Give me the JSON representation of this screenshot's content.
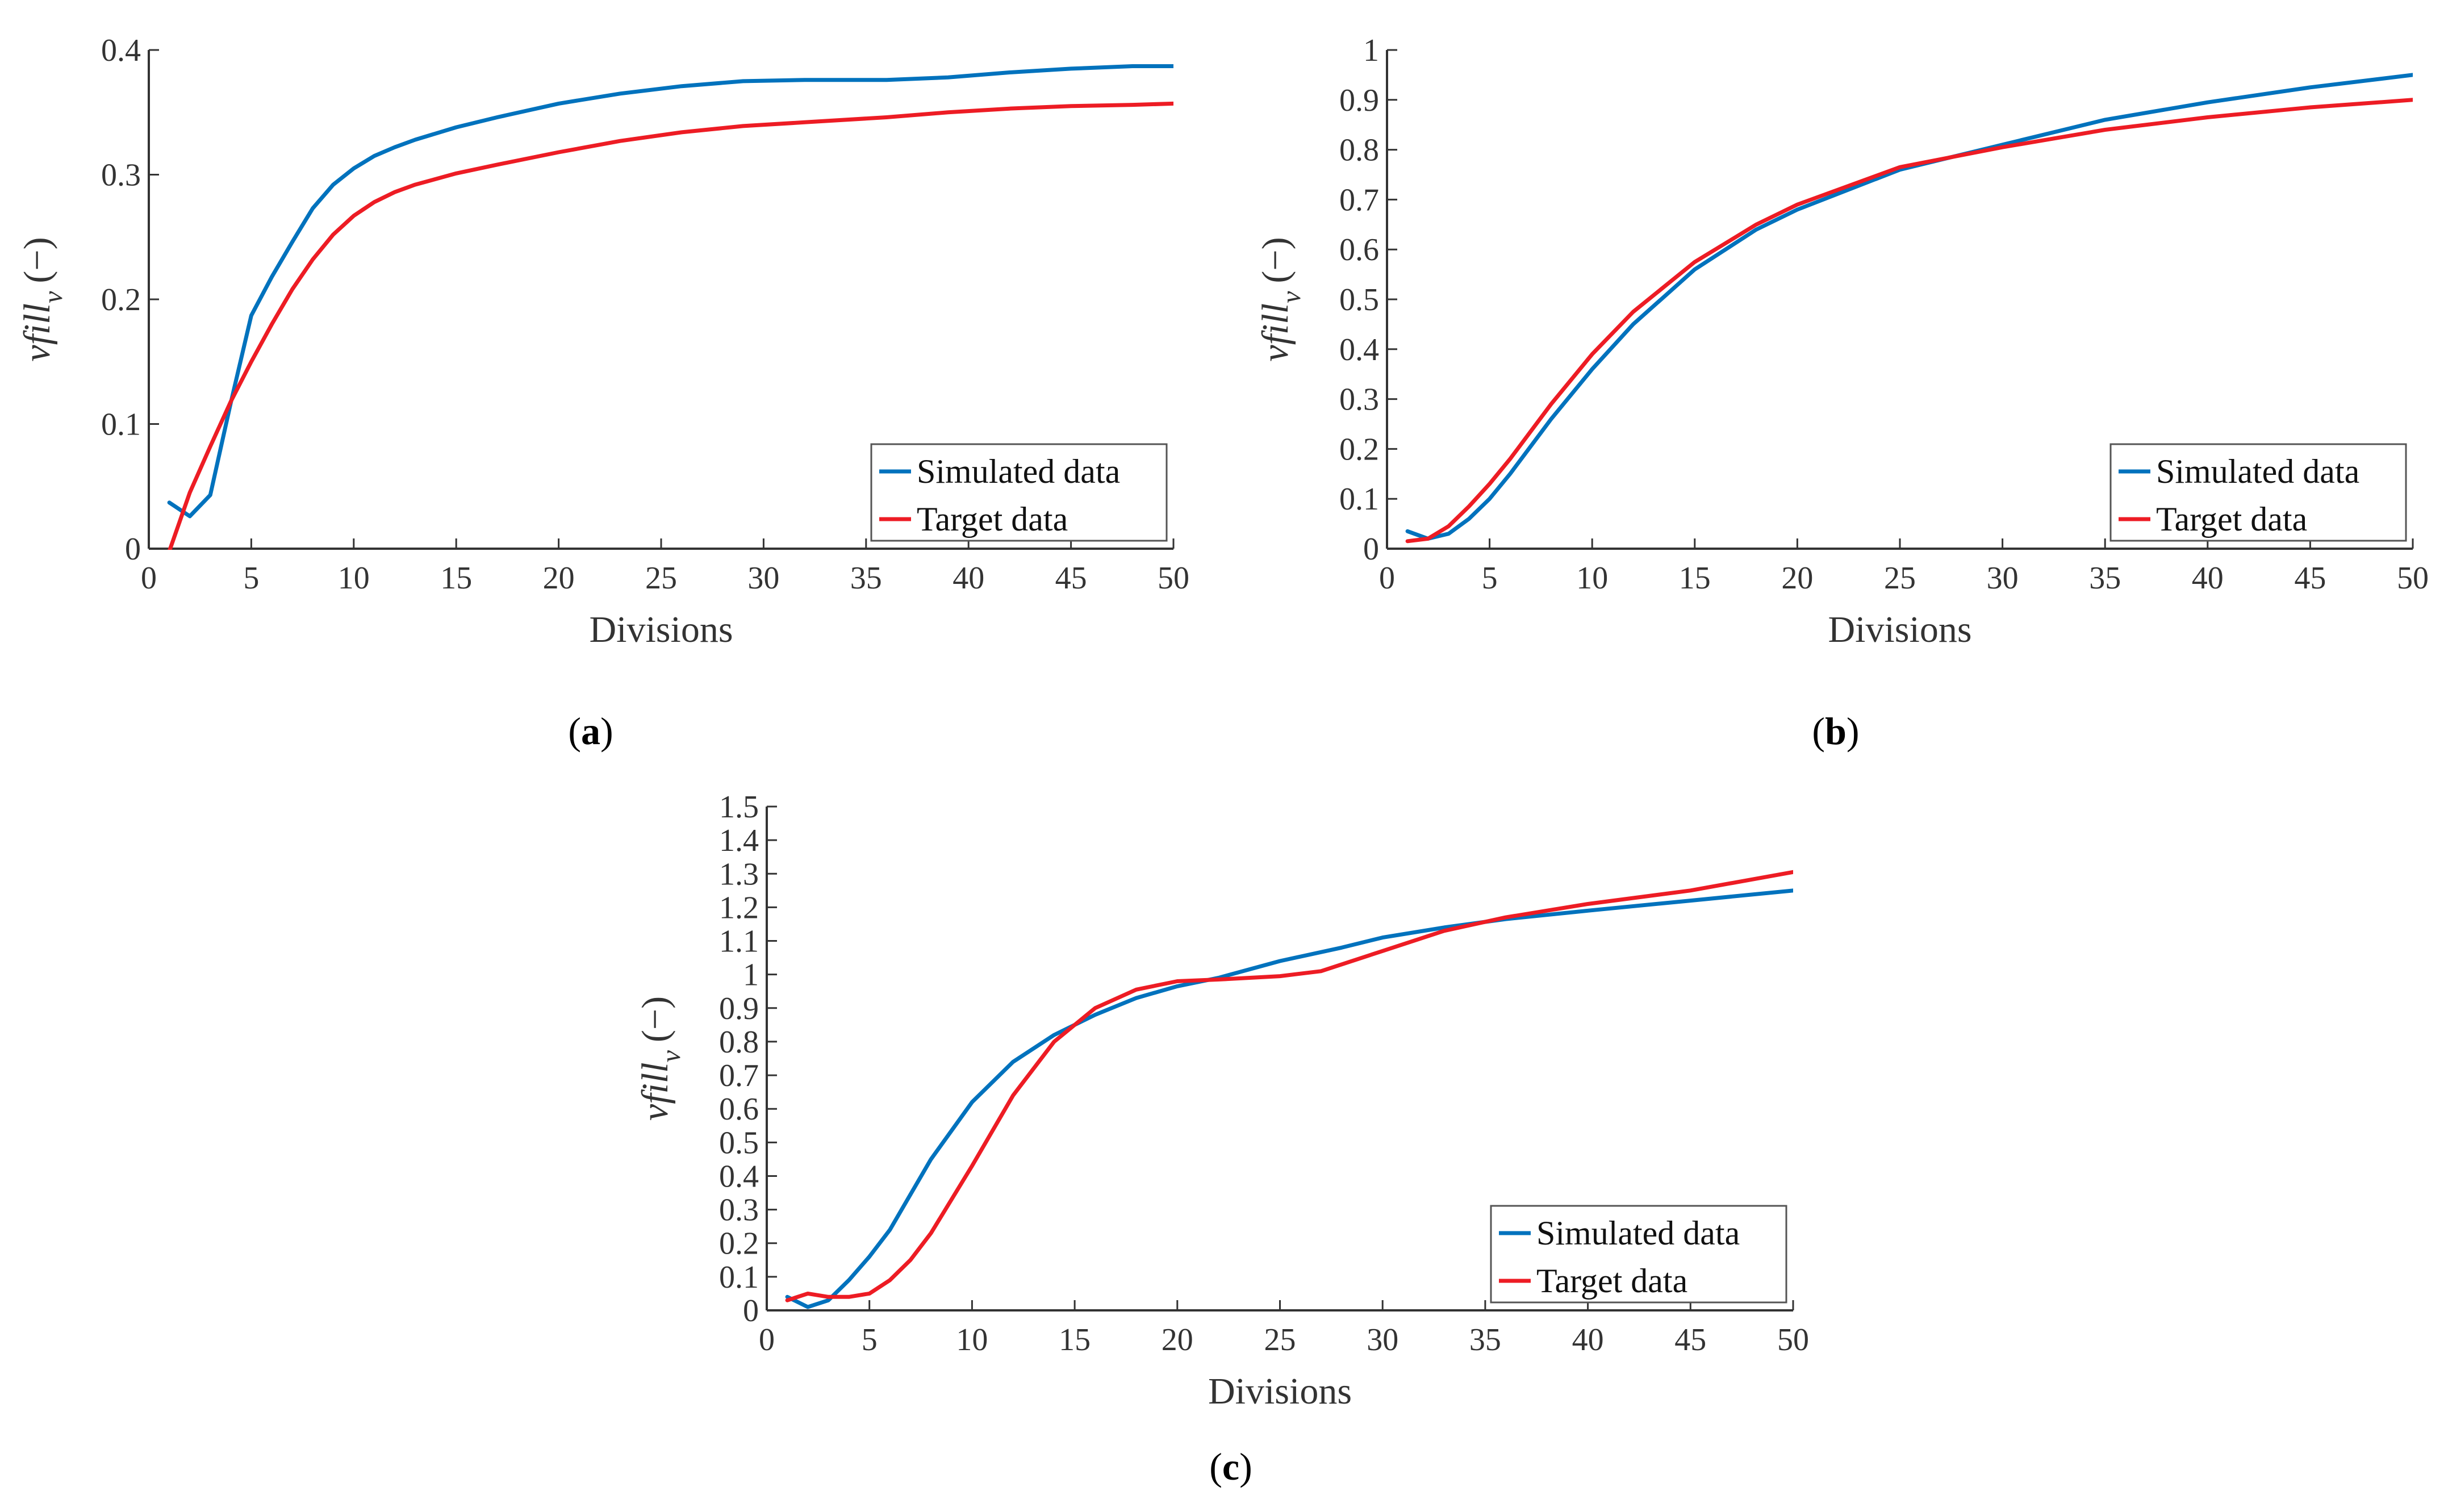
{
  "figure": {
    "panel_labels": [
      "a",
      "b",
      "c"
    ]
  },
  "colors": {
    "simulated": "#0072BD",
    "target": "#ED1C24",
    "axis": "#333333"
  },
  "chart_data": [
    {
      "type": "line",
      "panel": "a",
      "xlabel": "Divisions",
      "ylabel": "vfill_v (−)",
      "ylabel_main": "vfill",
      "ylabel_sub": "v",
      "ylabel_unit": "(−)",
      "xlim": [
        0,
        50
      ],
      "ylim": [
        0,
        0.4
      ],
      "xticks": [
        0,
        5,
        10,
        15,
        20,
        25,
        30,
        35,
        40,
        45,
        50
      ],
      "xtick_labels": [
        "0",
        "5",
        "10",
        "15",
        "20",
        "25",
        "30",
        "35",
        "40",
        "45",
        "50"
      ],
      "yticks": [
        0,
        0.1,
        0.2,
        0.3,
        0.4
      ],
      "ytick_labels": [
        "0",
        "0.1",
        "0.2",
        "0.3",
        "0.4"
      ],
      "legend": [
        "Simulated data",
        "Target data"
      ],
      "legend_position": "bottom-right",
      "series": [
        {
          "name": "Simulated data",
          "color": "#0072BD",
          "x": [
            1,
            2,
            3,
            4,
            5,
            6,
            7,
            8,
            9,
            10,
            11,
            12,
            13,
            15,
            17,
            20,
            23,
            26,
            29,
            32,
            36,
            39,
            42,
            45,
            48,
            50
          ],
          "y": [
            0.037,
            0.026,
            0.043,
            0.117,
            0.187,
            0.218,
            0.246,
            0.273,
            0.292,
            0.305,
            0.315,
            0.322,
            0.328,
            0.338,
            0.346,
            0.357,
            0.365,
            0.371,
            0.375,
            0.376,
            0.376,
            0.378,
            0.382,
            0.385,
            0.387,
            0.387
          ]
        },
        {
          "name": "Target data",
          "color": "#ED1C24",
          "x": [
            1,
            2,
            3,
            4,
            5,
            6,
            7,
            8,
            9,
            10,
            11,
            12,
            13,
            15,
            17,
            20,
            23,
            26,
            29,
            32,
            36,
            39,
            42,
            45,
            48,
            50
          ],
          "y": [
            -0.002,
            0.045,
            0.082,
            0.118,
            0.15,
            0.18,
            0.208,
            0.232,
            0.252,
            0.267,
            0.278,
            0.286,
            0.292,
            0.301,
            0.308,
            0.318,
            0.327,
            0.334,
            0.339,
            0.342,
            0.346,
            0.35,
            0.353,
            0.355,
            0.356,
            0.357
          ]
        }
      ]
    },
    {
      "type": "line",
      "panel": "b",
      "xlabel": "Divisions",
      "ylabel": "vfill_v (−)",
      "ylabel_main": "vfill",
      "ylabel_sub": "v",
      "ylabel_unit": "(−)",
      "xlim": [
        0,
        50
      ],
      "ylim": [
        0,
        1
      ],
      "xticks": [
        0,
        5,
        10,
        15,
        20,
        25,
        30,
        35,
        40,
        45,
        50
      ],
      "xtick_labels": [
        "0",
        "5",
        "10",
        "15",
        "20",
        "25",
        "30",
        "35",
        "40",
        "45",
        "50"
      ],
      "yticks": [
        0,
        0.1,
        0.2,
        0.3,
        0.4,
        0.5,
        0.6,
        0.7,
        0.8,
        0.9,
        1
      ],
      "ytick_labels": [
        "0",
        "0.1",
        "0.2",
        "0.3",
        "0.4",
        "0.5",
        "0.6",
        "0.7",
        "0.8",
        "0.9",
        "1"
      ],
      "legend": [
        "Simulated data",
        "Target data"
      ],
      "legend_position": "bottom-right",
      "series": [
        {
          "name": "Simulated data",
          "color": "#0072BD",
          "x": [
            1,
            2,
            3,
            4,
            5,
            6,
            8,
            10,
            12,
            15,
            18,
            20,
            25,
            30,
            35,
            40,
            45,
            50
          ],
          "y": [
            0.035,
            0.02,
            0.03,
            0.06,
            0.1,
            0.15,
            0.26,
            0.36,
            0.45,
            0.56,
            0.64,
            0.68,
            0.76,
            0.81,
            0.86,
            0.895,
            0.925,
            0.95
          ]
        },
        {
          "name": "Target data",
          "color": "#ED1C24",
          "x": [
            1,
            2,
            3,
            4,
            5,
            6,
            8,
            10,
            12,
            15,
            18,
            20,
            25,
            30,
            35,
            40,
            45,
            50
          ],
          "y": [
            0.015,
            0.02,
            0.045,
            0.085,
            0.13,
            0.18,
            0.29,
            0.39,
            0.475,
            0.575,
            0.65,
            0.69,
            0.765,
            0.805,
            0.84,
            0.865,
            0.885,
            0.9
          ]
        }
      ]
    },
    {
      "type": "line",
      "panel": "c",
      "xlabel": "Divisions",
      "ylabel": "vfill_v (−)",
      "ylabel_main": "vfill",
      "ylabel_sub": "v",
      "ylabel_unit": "(−)",
      "xlim": [
        0,
        50
      ],
      "ylim": [
        0,
        1.5
      ],
      "xticks": [
        0,
        5,
        10,
        15,
        20,
        25,
        30,
        35,
        40,
        45,
        50
      ],
      "xtick_labels": [
        "0",
        "5",
        "10",
        "15",
        "20",
        "25",
        "30",
        "35",
        "40",
        "45",
        "50"
      ],
      "yticks": [
        0,
        0.1,
        0.2,
        0.3,
        0.4,
        0.5,
        0.6,
        0.7,
        0.8,
        0.9,
        1,
        1.1,
        1.2,
        1.3,
        1.4,
        1.5
      ],
      "ytick_labels": [
        "0",
        "0.1",
        "0.2",
        "0.3",
        "0.4",
        "0.5",
        "0.6",
        "0.7",
        "0.8",
        "0.9",
        "1",
        "1.1",
        "1.2",
        "1.3",
        "1.4",
        "1.5"
      ],
      "legend": [
        "Simulated data",
        "Target data"
      ],
      "legend_position": "bottom-right",
      "series": [
        {
          "name": "Simulated data",
          "color": "#0072BD",
          "x": [
            1,
            2,
            3,
            4,
            5,
            6,
            8,
            10,
            12,
            14,
            16,
            18,
            20,
            22,
            25,
            28,
            30,
            33,
            36,
            40,
            45,
            50
          ],
          "y": [
            0.04,
            0.01,
            0.03,
            0.09,
            0.16,
            0.24,
            0.45,
            0.62,
            0.74,
            0.82,
            0.88,
            0.93,
            0.965,
            0.99,
            1.04,
            1.08,
            1.11,
            1.14,
            1.165,
            1.19,
            1.22,
            1.25
          ]
        },
        {
          "name": "Target data",
          "color": "#ED1C24",
          "x": [
            1,
            2,
            3,
            4,
            5,
            6,
            7,
            8,
            10,
            12,
            14,
            16,
            18,
            20,
            22,
            25,
            27,
            30,
            33,
            36,
            40,
            45,
            50
          ],
          "y": [
            0.03,
            0.05,
            0.04,
            0.04,
            0.05,
            0.09,
            0.15,
            0.23,
            0.43,
            0.64,
            0.8,
            0.9,
            0.955,
            0.98,
            0.985,
            0.995,
            1.01,
            1.07,
            1.13,
            1.17,
            1.21,
            1.25,
            1.305
          ]
        }
      ]
    }
  ]
}
